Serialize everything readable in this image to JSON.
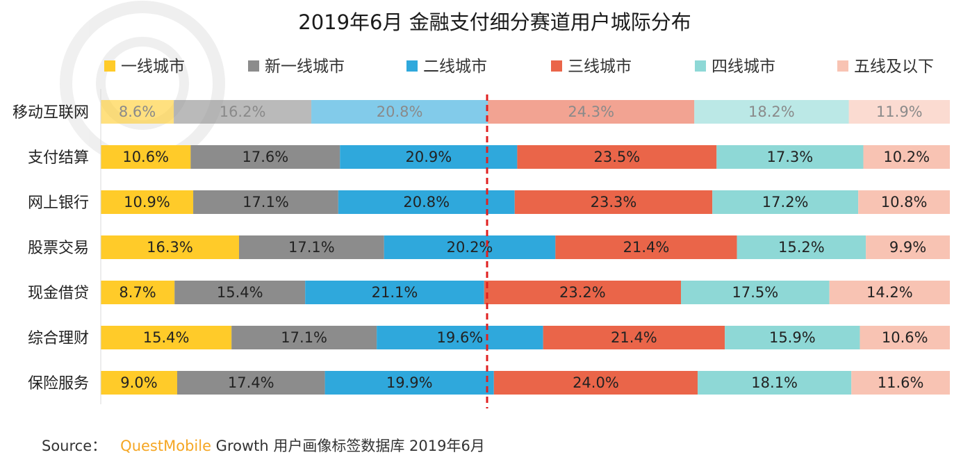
{
  "chart_data": {
    "type": "bar",
    "orientation": "horizontal",
    "stacked": true,
    "percent": true,
    "title": "2019年6月 金融支付细分赛道用户城际分布",
    "legend_position": "top",
    "categories": [
      "移动互联网",
      "支付结算",
      "网上银行",
      "股票交易",
      "现金借贷",
      "综合理财",
      "保险服务"
    ],
    "series": [
      {
        "name": "一线城市",
        "color": "#FFCB29",
        "values": [
          8.6,
          10.6,
          10.9,
          16.3,
          8.7,
          15.4,
          9.0
        ],
        "labels": [
          "8.6%",
          "10.6%",
          "10.9%",
          "16.3%",
          "8.7%",
          "15.4%",
          "9.0%"
        ]
      },
      {
        "name": "新一线城市",
        "color": "#8C8C8C",
        "values": [
          16.2,
          17.6,
          17.1,
          17.1,
          15.4,
          17.1,
          17.4
        ],
        "labels": [
          "16.2%",
          "17.6%",
          "17.1%",
          "17.1%",
          "15.4%",
          "17.1%",
          "17.4%"
        ]
      },
      {
        "name": "二线城市",
        "color": "#2FA8DC",
        "values": [
          20.8,
          20.9,
          20.8,
          20.2,
          21.1,
          19.6,
          19.9
        ],
        "labels": [
          "20.8%",
          "20.9%",
          "20.8%",
          "20.2%",
          "21.1%",
          "19.6%",
          "19.9%"
        ]
      },
      {
        "name": "三线城市",
        "color": "#EA6549",
        "values": [
          24.3,
          23.5,
          23.3,
          21.4,
          23.2,
          21.4,
          24.0
        ],
        "labels": [
          "24.3%",
          "23.5%",
          "23.3%",
          "21.4%",
          "23.2%",
          "21.4%",
          "24.0%"
        ]
      },
      {
        "name": "四线城市",
        "color": "#8ED8D6",
        "values": [
          18.2,
          17.3,
          17.2,
          15.2,
          17.5,
          15.9,
          18.1
        ],
        "labels": [
          "18.2%",
          "17.3%",
          "17.2%",
          "15.2%",
          "17.5%",
          "15.9%",
          "18.1%"
        ]
      },
      {
        "name": "五线及以下",
        "color": "#F8C3B3",
        "values": [
          11.9,
          10.2,
          10.8,
          9.9,
          14.2,
          10.6,
          11.6
        ],
        "labels": [
          "11.9%",
          "10.2%",
          "10.8%",
          "9.9%",
          "14.2%",
          "10.6%",
          "11.6%"
        ]
      }
    ],
    "highlighted_category_faded": "移动互联网",
    "reference_line": {
      "style": "dashed",
      "color": "#E02020",
      "at_percent": 45.5
    },
    "xlim": [
      0,
      100
    ]
  },
  "source": {
    "prefix": "Source：",
    "brand": "QuestMobile",
    "suffix": " Growth 用户画像标签数据库 2019年6月"
  }
}
